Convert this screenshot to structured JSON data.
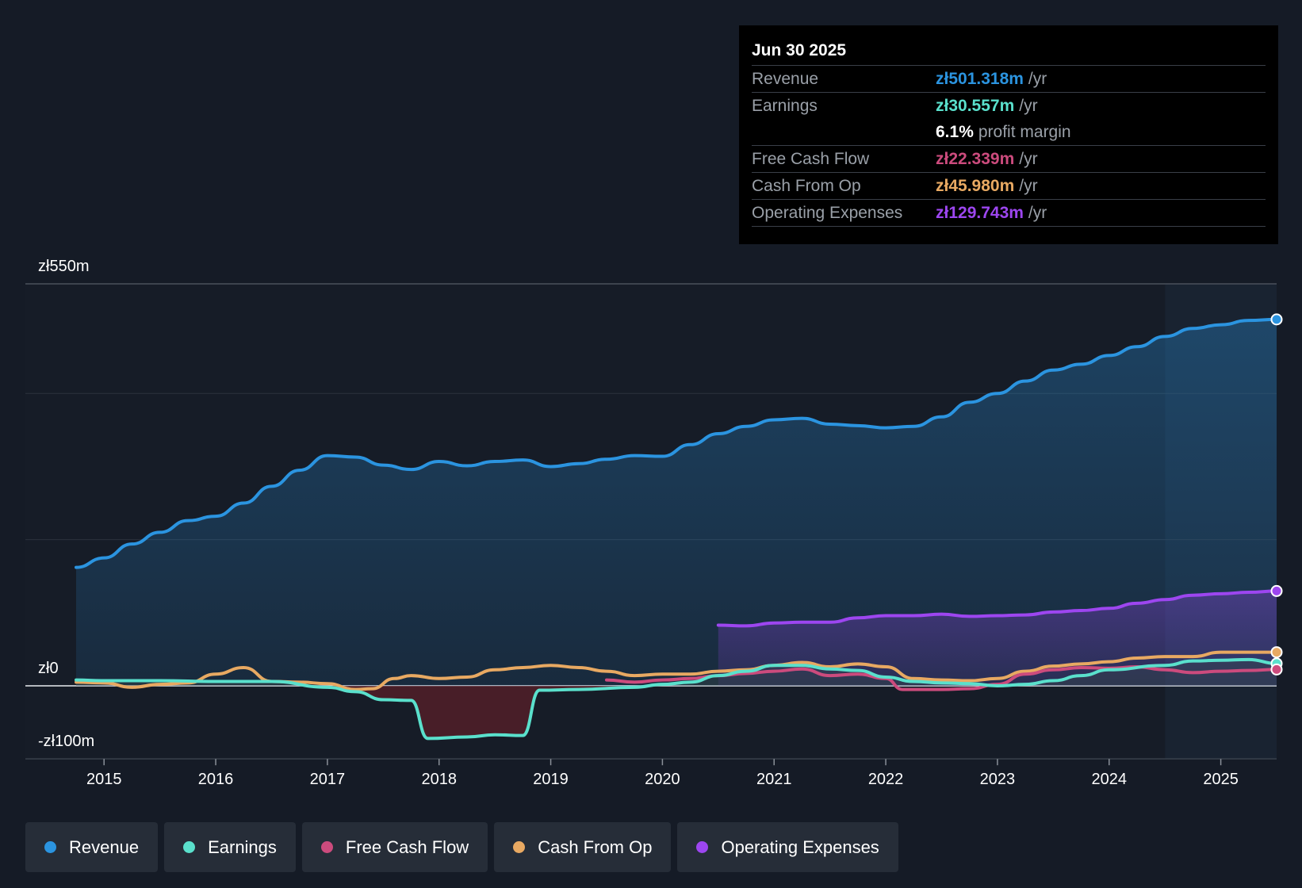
{
  "chart_data": {
    "type": "line",
    "currency": "zł",
    "y_axis_labels": {
      "top": "zł550m",
      "zero": "zł0",
      "bottom": "-zł100m"
    },
    "ylim": [
      -100,
      550
    ],
    "xlim": [
      2014.75,
      2025.5
    ],
    "x_ticks": [
      "2015",
      "2016",
      "2017",
      "2018",
      "2019",
      "2020",
      "2021",
      "2022",
      "2023",
      "2024",
      "2025"
    ],
    "highlight_start": 2024.5,
    "series": [
      {
        "name": "Revenue",
        "color": "#2b94e0",
        "fill": true,
        "points": [
          [
            2014.75,
            162
          ],
          [
            2015,
            175
          ],
          [
            2015.25,
            194
          ],
          [
            2015.5,
            210
          ],
          [
            2015.75,
            226
          ],
          [
            2016,
            232
          ],
          [
            2016.25,
            250
          ],
          [
            2016.5,
            273
          ],
          [
            2016.75,
            295
          ],
          [
            2017,
            315
          ],
          [
            2017.25,
            313
          ],
          [
            2017.5,
            302
          ],
          [
            2017.75,
            296
          ],
          [
            2018,
            307
          ],
          [
            2018.25,
            301
          ],
          [
            2018.5,
            307
          ],
          [
            2018.75,
            309
          ],
          [
            2019,
            300
          ],
          [
            2019.25,
            304
          ],
          [
            2019.5,
            310
          ],
          [
            2019.75,
            315
          ],
          [
            2020,
            314
          ],
          [
            2020.25,
            330
          ],
          [
            2020.5,
            345
          ],
          [
            2020.75,
            355
          ],
          [
            2021,
            364
          ],
          [
            2021.25,
            366
          ],
          [
            2021.5,
            358
          ],
          [
            2021.75,
            356
          ],
          [
            2022,
            353
          ],
          [
            2022.25,
            355
          ],
          [
            2022.5,
            368
          ],
          [
            2022.75,
            388
          ],
          [
            2023,
            400
          ],
          [
            2023.25,
            417
          ],
          [
            2023.5,
            432
          ],
          [
            2023.75,
            440
          ],
          [
            2024,
            452
          ],
          [
            2024.25,
            464
          ],
          [
            2024.5,
            478
          ],
          [
            2024.75,
            489
          ],
          [
            2025,
            494
          ],
          [
            2025.25,
            500
          ],
          [
            2025.5,
            501.318
          ]
        ]
      },
      {
        "name": "Earnings",
        "color": "#5ae0cc",
        "fill": false,
        "points": [
          [
            2014.75,
            8
          ],
          [
            2015,
            7
          ],
          [
            2015.5,
            7
          ],
          [
            2016,
            6
          ],
          [
            2016.5,
            6
          ],
          [
            2017,
            -2
          ],
          [
            2017.25,
            -8
          ],
          [
            2017.5,
            -19
          ],
          [
            2017.75,
            -20
          ],
          [
            2017.9,
            -72
          ],
          [
            2018.25,
            -70
          ],
          [
            2018.5,
            -67
          ],
          [
            2018.75,
            -68
          ],
          [
            2018.9,
            -6
          ],
          [
            2019.25,
            -5
          ],
          [
            2019.75,
            -2
          ],
          [
            2020,
            2
          ],
          [
            2020.25,
            5
          ],
          [
            2020.5,
            14
          ],
          [
            2020.75,
            20
          ],
          [
            2021,
            28
          ],
          [
            2021.25,
            28
          ],
          [
            2021.5,
            23
          ],
          [
            2021.75,
            21
          ],
          [
            2022,
            12
          ],
          [
            2022.25,
            6
          ],
          [
            2022.5,
            4
          ],
          [
            2022.75,
            3
          ],
          [
            2023,
            0
          ],
          [
            2023.25,
            2
          ],
          [
            2023.5,
            7
          ],
          [
            2023.75,
            14
          ],
          [
            2024,
            22
          ],
          [
            2024.5,
            28
          ],
          [
            2024.75,
            34
          ],
          [
            2025,
            35
          ],
          [
            2025.25,
            36
          ],
          [
            2025.5,
            30.557
          ]
        ]
      },
      {
        "name": "Free Cash Flow",
        "color": "#cc4b7d",
        "fill": false,
        "points": [
          [
            2019.5,
            8
          ],
          [
            2019.75,
            5
          ],
          [
            2020,
            8
          ],
          [
            2020.25,
            10
          ],
          [
            2020.5,
            14
          ],
          [
            2020.75,
            17
          ],
          [
            2021,
            20
          ],
          [
            2021.25,
            23
          ],
          [
            2021.5,
            14
          ],
          [
            2021.75,
            16
          ],
          [
            2022,
            10
          ],
          [
            2022.15,
            -5
          ],
          [
            2022.5,
            -5
          ],
          [
            2022.75,
            -4
          ],
          [
            2023,
            2
          ],
          [
            2023.25,
            16
          ],
          [
            2023.5,
            22
          ],
          [
            2023.75,
            25
          ],
          [
            2024,
            24
          ],
          [
            2024.25,
            26
          ],
          [
            2024.5,
            22
          ],
          [
            2024.75,
            18
          ],
          [
            2025,
            20
          ],
          [
            2025.25,
            21
          ],
          [
            2025.5,
            22.339
          ]
        ]
      },
      {
        "name": "Cash From Op",
        "color": "#e8a962",
        "fill": false,
        "points": [
          [
            2014.75,
            5
          ],
          [
            2015,
            4
          ],
          [
            2015.25,
            -2
          ],
          [
            2015.5,
            2
          ],
          [
            2015.75,
            4
          ],
          [
            2016,
            16
          ],
          [
            2016.25,
            25
          ],
          [
            2016.5,
            6
          ],
          [
            2016.75,
            5
          ],
          [
            2017,
            3
          ],
          [
            2017.25,
            -5
          ],
          [
            2017.4,
            -4
          ],
          [
            2017.6,
            10
          ],
          [
            2017.75,
            14
          ],
          [
            2018,
            10
          ],
          [
            2018.25,
            12
          ],
          [
            2018.5,
            22
          ],
          [
            2018.75,
            25
          ],
          [
            2019,
            28
          ],
          [
            2019.25,
            25
          ],
          [
            2019.5,
            20
          ],
          [
            2019.75,
            14
          ],
          [
            2020,
            16
          ],
          [
            2020.25,
            16
          ],
          [
            2020.5,
            20
          ],
          [
            2020.75,
            22
          ],
          [
            2021,
            28
          ],
          [
            2021.25,
            32
          ],
          [
            2021.5,
            26
          ],
          [
            2021.75,
            30
          ],
          [
            2022,
            26
          ],
          [
            2022.25,
            10
          ],
          [
            2022.5,
            8
          ],
          [
            2022.75,
            7
          ],
          [
            2023,
            10
          ],
          [
            2023.25,
            20
          ],
          [
            2023.5,
            27
          ],
          [
            2023.75,
            30
          ],
          [
            2024,
            33
          ],
          [
            2024.25,
            38
          ],
          [
            2024.5,
            40
          ],
          [
            2024.75,
            40
          ],
          [
            2025,
            46
          ],
          [
            2025.5,
            45.98
          ]
        ]
      },
      {
        "name": "Operating Expenses",
        "color": "#9d46f0",
        "fill": true,
        "points": [
          [
            2020.5,
            83
          ],
          [
            2020.75,
            82
          ],
          [
            2021,
            86
          ],
          [
            2021.25,
            87
          ],
          [
            2021.5,
            87
          ],
          [
            2021.75,
            93
          ],
          [
            2022,
            96
          ],
          [
            2022.25,
            96
          ],
          [
            2022.5,
            98
          ],
          [
            2022.75,
            95
          ],
          [
            2023,
            96
          ],
          [
            2023.25,
            97
          ],
          [
            2023.5,
            101
          ],
          [
            2023.75,
            103
          ],
          [
            2024,
            106
          ],
          [
            2024.25,
            113
          ],
          [
            2024.5,
            118
          ],
          [
            2024.75,
            124
          ],
          [
            2025,
            126
          ],
          [
            2025.25,
            128
          ],
          [
            2025.5,
            129.743
          ]
        ]
      }
    ]
  },
  "tooltip": {
    "date": "Jun 30 2025",
    "rows": [
      {
        "label": "Revenue",
        "value": "zł501.318m",
        "unit": "/yr",
        "color": "#2b94e0"
      },
      {
        "label": "Earnings",
        "value": "zł30.557m",
        "unit": "/yr",
        "color": "#5ae0cc"
      },
      {
        "label": "",
        "value": "6.1%",
        "unit": "profit margin",
        "color": "#ffffff"
      },
      {
        "label": "Free Cash Flow",
        "value": "zł22.339m",
        "unit": "/yr",
        "color": "#cc4b7d"
      },
      {
        "label": "Cash From Op",
        "value": "zł45.980m",
        "unit": "/yr",
        "color": "#e8a962"
      },
      {
        "label": "Operating Expenses",
        "value": "zł129.743m",
        "unit": "/yr",
        "color": "#9d46f0"
      }
    ]
  },
  "legend": [
    {
      "label": "Revenue",
      "color": "#2b94e0"
    },
    {
      "label": "Earnings",
      "color": "#5ae0cc"
    },
    {
      "label": "Free Cash Flow",
      "color": "#cc4b7d"
    },
    {
      "label": "Cash From Op",
      "color": "#e8a962"
    },
    {
      "label": "Operating Expenses",
      "color": "#9d46f0"
    }
  ]
}
